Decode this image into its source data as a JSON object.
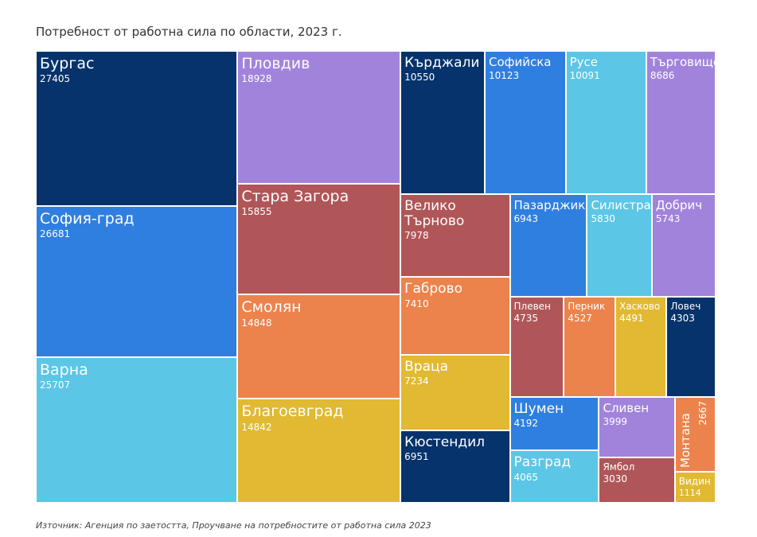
{
  "chart_data": {
    "type": "treemap",
    "title": "Потребност от работна сила по области, 2023 г.",
    "source": "Източник: Агенция по заетостта, Проучване на потребностите от работна сила 2023",
    "items": [
      {
        "label": "Бургас",
        "value": 27405,
        "color": "#06336b"
      },
      {
        "label": "София-град",
        "value": 26681,
        "color": "#2f7fe0"
      },
      {
        "label": "Варна",
        "value": 25707,
        "color": "#5bc6e6"
      },
      {
        "label": "Пловдив",
        "value": 18928,
        "color": "#a183dc"
      },
      {
        "label": "Стара Загора",
        "value": 15855,
        "color": "#b05658"
      },
      {
        "label": "Смолян",
        "value": 14848,
        "color": "#ec834c"
      },
      {
        "label": "Благоевград",
        "value": 14842,
        "color": "#e1b932"
      },
      {
        "label": "Кърджали",
        "value": 10550,
        "color": "#06336b"
      },
      {
        "label": "Софийска",
        "value": 10123,
        "color": "#2f7fe0"
      },
      {
        "label": "Русе",
        "value": 10091,
        "color": "#5bc6e6"
      },
      {
        "label": "Търговище",
        "value": 8686,
        "color": "#a183dc"
      },
      {
        "label": "Велико Търново",
        "value": 7978,
        "color": "#b05658"
      },
      {
        "label": "Габрово",
        "value": 7410,
        "color": "#ec834c"
      },
      {
        "label": "Враца",
        "value": 7234,
        "color": "#e1b932"
      },
      {
        "label": "Кюстендил",
        "value": 6951,
        "color": "#06336b"
      },
      {
        "label": "Пазарджик",
        "value": 6943,
        "color": "#2f7fe0"
      },
      {
        "label": "Силистра",
        "value": 5830,
        "color": "#5bc6e6"
      },
      {
        "label": "Добрич",
        "value": 5743,
        "color": "#a183dc"
      },
      {
        "label": "Плевен",
        "value": 4735,
        "color": "#b05658"
      },
      {
        "label": "Перник",
        "value": 4527,
        "color": "#ec834c"
      },
      {
        "label": "Хасково",
        "value": 4491,
        "color": "#e1b932"
      },
      {
        "label": "Ловеч",
        "value": 4303,
        "color": "#06336b"
      },
      {
        "label": "Шумен",
        "value": 4192,
        "color": "#2f7fe0"
      },
      {
        "label": "Разград",
        "value": 4065,
        "color": "#5bc6e6"
      },
      {
        "label": "Сливен",
        "value": 3999,
        "color": "#a183dc"
      },
      {
        "label": "Ямбол",
        "value": 3030,
        "color": "#b05658"
      },
      {
        "label": "Монтана",
        "value": 2667,
        "color": "#ec834c"
      },
      {
        "label": "Видин",
        "value": 1114,
        "color": "#e1b932"
      }
    ]
  }
}
